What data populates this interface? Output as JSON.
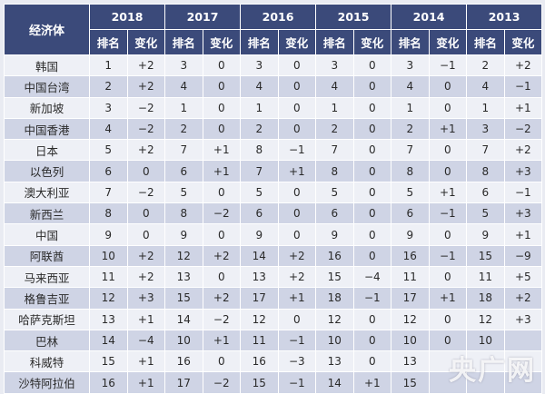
{
  "table": {
    "corner_label": "经济体",
    "years": [
      "2018",
      "2017",
      "2016",
      "2015",
      "2014",
      "2013"
    ],
    "sub_rank": "排名",
    "sub_change": "变化",
    "rows": [
      {
        "name": "韩国",
        "cells": [
          "1",
          "+2",
          "3",
          "0",
          "3",
          "0",
          "3",
          "0",
          "3",
          "−1",
          "2",
          "+2"
        ]
      },
      {
        "name": "中国台湾",
        "cells": [
          "2",
          "+2",
          "4",
          "0",
          "4",
          "0",
          "4",
          "0",
          "4",
          "0",
          "4",
          "−1"
        ]
      },
      {
        "name": "新加坡",
        "cells": [
          "3",
          "−2",
          "1",
          "0",
          "1",
          "0",
          "1",
          "0",
          "1",
          "0",
          "1",
          "+1"
        ]
      },
      {
        "name": "中国香港",
        "cells": [
          "4",
          "−2",
          "2",
          "0",
          "2",
          "0",
          "2",
          "0",
          "2",
          "+1",
          "3",
          "−2"
        ]
      },
      {
        "name": "日本",
        "cells": [
          "5",
          "+2",
          "7",
          "+1",
          "8",
          "−1",
          "7",
          "0",
          "7",
          "0",
          "7",
          "+2"
        ]
      },
      {
        "name": "以色列",
        "cells": [
          "6",
          "0",
          "6",
          "+1",
          "7",
          "+1",
          "8",
          "0",
          "8",
          "0",
          "8",
          "+3"
        ]
      },
      {
        "name": "澳大利亚",
        "cells": [
          "7",
          "−2",
          "5",
          "0",
          "5",
          "0",
          "5",
          "0",
          "5",
          "+1",
          "6",
          "−1"
        ]
      },
      {
        "name": "新西兰",
        "cells": [
          "8",
          "0",
          "8",
          "−2",
          "6",
          "0",
          "6",
          "0",
          "6",
          "−1",
          "5",
          "+3"
        ]
      },
      {
        "name": "中国",
        "cells": [
          "9",
          "0",
          "9",
          "0",
          "9",
          "0",
          "9",
          "0",
          "9",
          "0",
          "9",
          "+1"
        ]
      },
      {
        "name": "阿联酋",
        "cells": [
          "10",
          "+2",
          "12",
          "+2",
          "14",
          "+2",
          "16",
          "0",
          "16",
          "−1",
          "15",
          "−9"
        ]
      },
      {
        "name": "马来西亚",
        "cells": [
          "11",
          "+2",
          "13",
          "0",
          "13",
          "+2",
          "15",
          "−4",
          "11",
          "0",
          "11",
          "+5"
        ]
      },
      {
        "name": "格鲁吉亚",
        "cells": [
          "12",
          "+3",
          "15",
          "+2",
          "17",
          "+1",
          "18",
          "−1",
          "17",
          "+1",
          "18",
          "+2"
        ]
      },
      {
        "name": "哈萨克斯坦",
        "cells": [
          "13",
          "+1",
          "14",
          "−2",
          "12",
          "0",
          "12",
          "0",
          "12",
          "0",
          "12",
          "+3"
        ]
      },
      {
        "name": "巴林",
        "cells": [
          "14",
          "−4",
          "10",
          "+1",
          "11",
          "−1",
          "10",
          "0",
          "10",
          "0",
          "10",
          ""
        ]
      },
      {
        "name": "科威特",
        "cells": [
          "15",
          "+1",
          "16",
          "0",
          "16",
          "−3",
          "13",
          "0",
          "13",
          "",
          "",
          ""
        ]
      },
      {
        "name": "沙特阿拉伯",
        "cells": [
          "16",
          "+1",
          "17",
          "−2",
          "15",
          "−1",
          "14",
          "+1",
          "15",
          "",
          "",
          ""
        ]
      }
    ]
  },
  "watermark_text": "央广网"
}
